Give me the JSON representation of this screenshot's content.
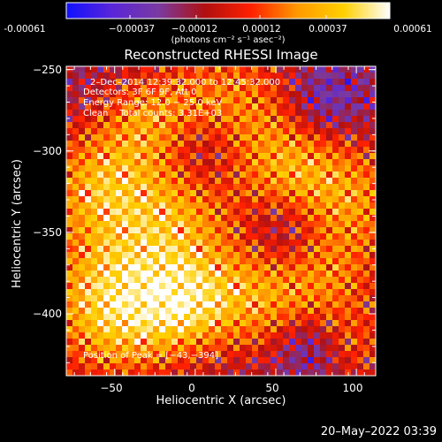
{
  "chart_data": {
    "type": "heatmap",
    "title": "Reconstructed RHESSI Image",
    "xlabel": "Heliocentric X (arcsec)",
    "ylabel": "Heliocentric Y (arcsec)",
    "xlim": [
      -80,
      112
    ],
    "ylim": [
      -438,
      -248
    ],
    "x_ticks": [
      -50,
      0,
      50,
      100
    ],
    "x_tick_labels": [
      "−50",
      "0",
      "50",
      "100"
    ],
    "y_ticks": [
      -250,
      -300,
      -350,
      -400
    ],
    "y_tick_labels": [
      "−250",
      "−300",
      "−350",
      "−400"
    ],
    "colorbar": {
      "range": [
        -0.00061,
        0.00061
      ],
      "ticks": [
        -0.00061,
        -0.00037,
        -0.00012,
        0.00012,
        0.00037,
        0.00061
      ],
      "tick_labels": [
        "-0.00061",
        "−0.00037",
        "−0.00012",
        "0.00012",
        "0.00037",
        "0.00061"
      ],
      "units": "(photons cm⁻² s⁻¹ asec⁻²)"
    },
    "annotations": [
      "2–Dec–2014 12:39:32.000 to 12:45:32.000",
      "Detectors: 3F 6F 9F, Att 0",
      "Energy Range: 12.0 − 25.0 keV",
      "Clean    Total counts: 3.31E+03"
    ],
    "peak_label": "Position of Peak = [−43,−394]",
    "peak": [
      -43,
      -394
    ],
    "grid": false,
    "colormap_stops": [
      "#1010ff",
      "#5a26d8",
      "#7a3aa0",
      "#b01010",
      "#ff2000",
      "#ff9a00",
      "#ffd000",
      "#ffffff"
    ]
  },
  "footer": {
    "timestamp": "20–May–2022 03:39"
  }
}
